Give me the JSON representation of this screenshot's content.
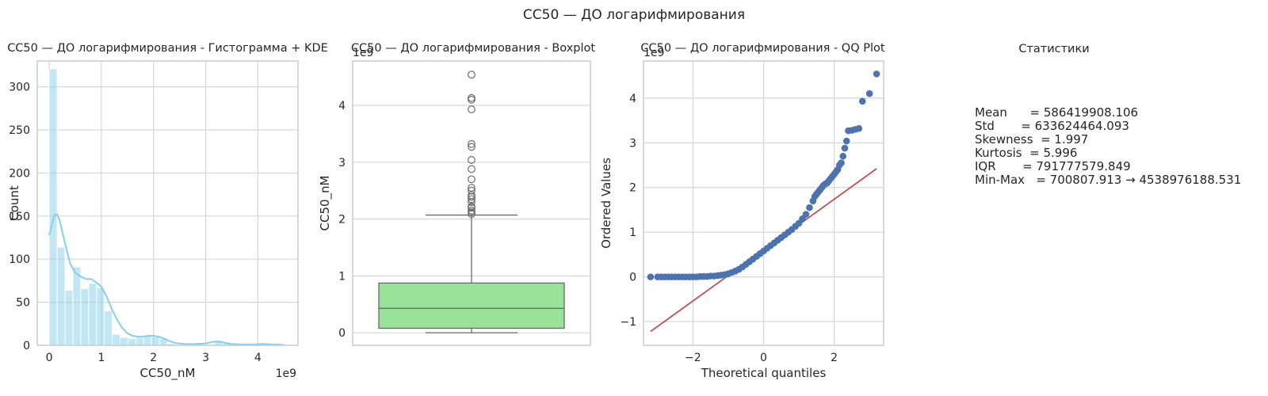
{
  "suptitle": "CC50 — ДО логарифмирования",
  "chart_data": [
    {
      "type": "bar",
      "title": "CC50 — ДО логарифмирования - Гистограмма + KDE",
      "xlabel": "CC50_nM",
      "ylabel": "Count",
      "x_offset_label": "1e9",
      "xlim": [
        -0.23,
        4.77
      ],
      "ylim": [
        0,
        330
      ],
      "xticks": [
        0,
        1,
        2,
        3,
        4
      ],
      "yticks": [
        0,
        50,
        100,
        150,
        200,
        250,
        300
      ],
      "bin_width": 0.151,
      "bin_starts": [
        0.0,
        0.151,
        0.302,
        0.453,
        0.604,
        0.755,
        0.906,
        1.057,
        1.208,
        1.359,
        1.51,
        1.661,
        1.812,
        1.963,
        2.114,
        2.265,
        2.416,
        2.567,
        2.718,
        2.869,
        3.02,
        3.171,
        3.322,
        3.473,
        3.624,
        3.775,
        3.926,
        4.077,
        4.228,
        4.379
      ],
      "counts": [
        321,
        114,
        64,
        91,
        66,
        72,
        67,
        40,
        13,
        9,
        8,
        9,
        12,
        10,
        8,
        2,
        1,
        1,
        1,
        1,
        1,
        4,
        4,
        0,
        0,
        0,
        1,
        1,
        0,
        1
      ],
      "kde": {
        "x": [
          0.0,
          0.05,
          0.1,
          0.15,
          0.2,
          0.3,
          0.4,
          0.5,
          0.6,
          0.7,
          0.8,
          0.9,
          1.0,
          1.1,
          1.2,
          1.3,
          1.4,
          1.5,
          1.6,
          1.7,
          1.8,
          1.9,
          2.0,
          2.1,
          2.2,
          2.3,
          2.4,
          2.5,
          2.6,
          2.8,
          3.0,
          3.1,
          3.2,
          3.3,
          3.4,
          3.5,
          3.7,
          3.9,
          4.1,
          4.3,
          4.5
        ],
        "y": [
          128,
          140,
          151,
          152,
          145,
          119,
          95,
          84,
          80,
          77,
          77,
          73,
          68,
          57,
          42,
          30,
          20,
          14,
          11,
          10,
          10,
          11,
          11,
          10,
          8,
          5,
          3,
          2,
          1.5,
          1.5,
          2,
          3.5,
          4.5,
          4,
          2.5,
          1.5,
          1,
          1,
          1.5,
          1,
          0.5
        ]
      },
      "bar_color": "#87ceeb",
      "kde_color": "#87ceeb"
    },
    {
      "type": "box",
      "title": "CC50 — ДО логарифмирования - Boxplot",
      "ylabel": "CC50_nM",
      "y_offset_label": "1e9",
      "ylim": [
        -0.22,
        4.78
      ],
      "yticks": [
        0,
        1,
        2,
        3,
        4
      ],
      "box": {
        "whisker_low": 0.0007,
        "q1": 0.08,
        "median": 0.43,
        "q3": 0.875,
        "whisker_high": 2.07
      },
      "outliers": [
        2.09,
        2.12,
        2.15,
        2.2,
        2.22,
        2.3,
        2.35,
        2.39,
        2.42,
        2.5,
        2.55,
        2.7,
        2.88,
        3.04,
        3.27,
        3.32,
        3.93,
        4.1,
        4.13,
        4.54
      ],
      "box_color": "#98e29a"
    },
    {
      "type": "scatter",
      "title": "CC50 — ДО логарифмирования - QQ Plot",
      "xlabel": "Theoretical quantiles",
      "ylabel": "Ordered Values",
      "y_offset_label": "1e9",
      "xlim": [
        -3.4,
        3.4
      ],
      "ylim": [
        -1.53,
        4.83
      ],
      "xticks": [
        -2,
        0,
        2
      ],
      "yticks": [
        -1,
        0,
        1,
        2,
        3,
        4
      ],
      "points": {
        "x": [
          -3.2,
          -3.0,
          -2.9,
          -2.8,
          -2.7,
          -2.6,
          -2.5,
          -2.4,
          -2.3,
          -2.2,
          -2.1,
          -2.0,
          -1.9,
          -1.8,
          -1.7,
          -1.6,
          -1.5,
          -1.4,
          -1.3,
          -1.2,
          -1.1,
          -1.0,
          -0.9,
          -0.8,
          -0.7,
          -0.6,
          -0.5,
          -0.4,
          -0.3,
          -0.2,
          -0.1,
          0.0,
          0.1,
          0.2,
          0.3,
          0.4,
          0.5,
          0.6,
          0.7,
          0.8,
          0.9,
          1.0,
          1.1,
          1.2,
          1.3,
          1.4,
          1.45,
          1.5,
          1.55,
          1.6,
          1.65,
          1.7,
          1.75,
          1.8,
          1.85,
          1.9,
          1.95,
          2.0,
          2.05,
          2.1,
          2.15,
          2.2,
          2.25,
          2.3,
          2.35,
          2.4,
          2.5,
          2.6,
          2.7,
          2.8,
          3.0,
          3.2
        ],
        "y": [
          0.0,
          0.0,
          0.0,
          0.0,
          0.0,
          0.0,
          0.0,
          0.0,
          0.0,
          0.0,
          0.0,
          0.0,
          0.0,
          0.01,
          0.01,
          0.01,
          0.02,
          0.02,
          0.03,
          0.04,
          0.05,
          0.07,
          0.1,
          0.13,
          0.17,
          0.22,
          0.28,
          0.34,
          0.4,
          0.46,
          0.52,
          0.58,
          0.64,
          0.7,
          0.76,
          0.82,
          0.88,
          0.94,
          1.0,
          1.06,
          1.13,
          1.2,
          1.3,
          1.4,
          1.55,
          1.7,
          1.8,
          1.85,
          1.9,
          1.95,
          2.0,
          2.05,
          2.08,
          2.1,
          2.15,
          2.2,
          2.25,
          2.3,
          2.35,
          2.4,
          2.5,
          2.55,
          2.7,
          2.88,
          3.04,
          3.27,
          3.28,
          3.3,
          3.32,
          3.93,
          4.1,
          4.54
        ]
      },
      "fit_line": {
        "x": [
          -3.2,
          3.2
        ],
        "y": [
          -1.22,
          2.42
        ]
      },
      "point_color": "#4c72b0",
      "line_color": "#c44e52"
    }
  ],
  "stats": {
    "title": "Статистики",
    "lines": [
      "Mean      = 586419908.106",
      "Std       = 633624464.093",
      "Skewness  = 1.997",
      "Kurtosis  = 5.996",
      "IQR       = 791777579.849",
      "Min-Max   = 700807.913 → 4538976188.531"
    ]
  }
}
